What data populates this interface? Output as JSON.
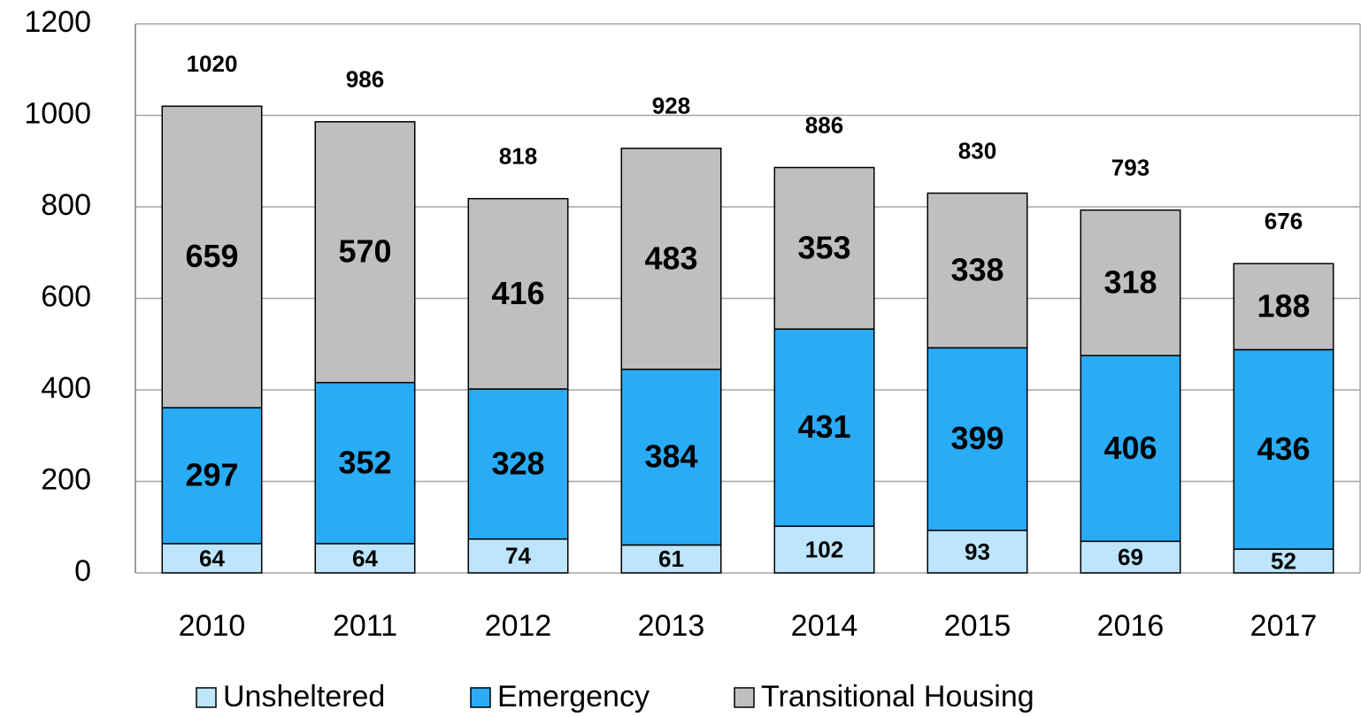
{
  "chart_data": {
    "type": "stacked_bar",
    "categories": [
      "2010",
      "2011",
      "2012",
      "2013",
      "2014",
      "2015",
      "2016",
      "2017"
    ],
    "series": [
      {
        "name": "Unsheltered",
        "color": "#bde5fb",
        "values": [
          64,
          64,
          74,
          61,
          102,
          93,
          69,
          52
        ]
      },
      {
        "name": "Emergency",
        "color": "#29abf5",
        "values": [
          297,
          352,
          328,
          384,
          431,
          399,
          406,
          436
        ]
      },
      {
        "name": "Transitional Housing",
        "color": "#bfbfbf",
        "values": [
          659,
          570,
          416,
          483,
          353,
          338,
          318,
          188
        ]
      }
    ],
    "totals": [
      1020,
      986,
      818,
      928,
      886,
      830,
      793,
      676
    ],
    "ylim": [
      0,
      1200
    ],
    "yticks": [
      0,
      200,
      400,
      600,
      800,
      1000,
      1200
    ],
    "grid": true,
    "legend": "bottom"
  }
}
